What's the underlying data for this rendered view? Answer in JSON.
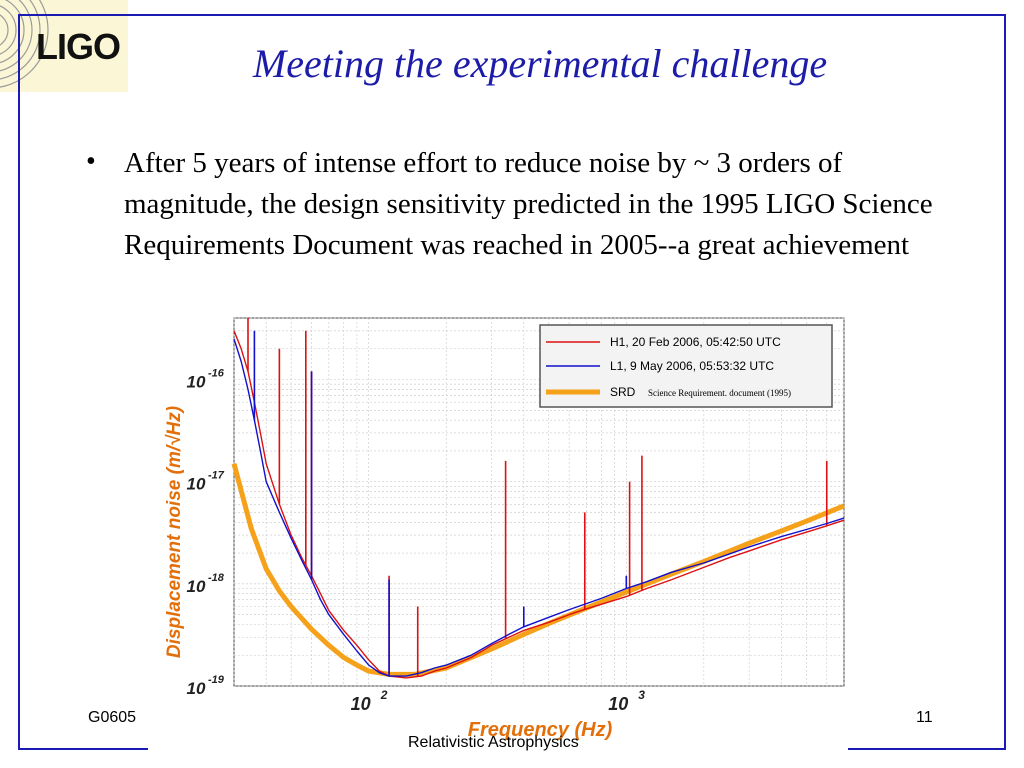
{
  "logo": {
    "text": "LIGO"
  },
  "slide": {
    "title": "Meeting the experimental challenge",
    "bullet_marker": "•",
    "bullet_text": "After 5 years of intense effort to reduce noise by ~ 3 orders of magnitude, the design sensitivity predicted in the 1995 LIGO Science Requirements Document was reached in 2005--a great achievement"
  },
  "footer": {
    "left": "G0605",
    "center": "Relativistic Astrophysics",
    "page_number": "11"
  },
  "chart_data": {
    "type": "line",
    "xscale": "log",
    "yscale": "log",
    "xlim": [
      30,
      7000
    ],
    "ylim": [
      1e-19,
      4e-16
    ],
    "grid": true,
    "legend_position": "top-right",
    "xlabel": "Frequency (Hz)",
    "ylabel": "Displacement noise (m/√Hz)",
    "x_tick_labels": [
      {
        "value": 100,
        "base": "10",
        "exp": "2"
      },
      {
        "value": 1000,
        "base": "10",
        "exp": "3"
      }
    ],
    "y_tick_labels": [
      {
        "value": 1e-16,
        "base": "10",
        "exp": "-16"
      },
      {
        "value": 1e-17,
        "base": "10",
        "exp": "-17"
      },
      {
        "value": 1e-18,
        "base": "10",
        "exp": "-18"
      },
      {
        "value": 1e-19,
        "base": "10",
        "exp": "-19"
      }
    ],
    "colors": {
      "H1": "#dd1111",
      "L1": "#1111cc",
      "SRD": "#f5a11a",
      "ylabel": "#e36f0a",
      "xlabel": "#e36f0a"
    },
    "series": [
      {
        "name": "H1, 20 Feb 2006, 05:42:50 UTC",
        "key": "H1",
        "x": [
          30,
          32,
          34,
          36,
          38,
          40,
          45,
          50,
          55,
          60,
          65,
          70,
          80,
          90,
          100,
          110,
          120,
          140,
          160,
          180,
          200,
          250,
          300,
          350,
          400,
          500,
          600,
          700,
          800,
          1000,
          1200,
          1500,
          2000,
          2500,
          3000,
          4000,
          5000,
          6000,
          7000
        ],
        "y": [
          3e-16,
          2e-16,
          1.2e-16,
          6e-17,
          3e-17,
          1.5e-17,
          6e-18,
          3e-18,
          1.8e-18,
          1.2e-18,
          8e-19,
          5.5e-19,
          3.5e-19,
          2.5e-19,
          1.8e-19,
          1.4e-19,
          1.25e-19,
          1.2e-19,
          1.25e-19,
          1.4e-19,
          1.5e-19,
          1.9e-19,
          2.5e-19,
          3e-19,
          3.5e-19,
          4.2e-19,
          5e-19,
          5.7e-19,
          6.3e-19,
          7.5e-19,
          9e-19,
          1.1e-18,
          1.45e-18,
          1.8e-18,
          2.1e-18,
          2.7e-18,
          3.2e-18,
          3.7e-18,
          4.2e-18
        ],
        "peaks": [
          [
            34,
            4e-16
          ],
          [
            45,
            2e-16
          ],
          [
            57,
            3e-16
          ],
          [
            60,
            1.2e-16
          ],
          [
            120,
            1.2e-18
          ],
          [
            155,
            6e-19
          ],
          [
            340,
            1.6e-17
          ],
          [
            690,
            5e-18
          ],
          [
            1030,
            1e-17
          ],
          [
            1150,
            1.8e-17
          ],
          [
            6000,
            1.6e-17
          ]
        ]
      },
      {
        "name": "L1, 9 May 2006, 05:53:32 UTC",
        "key": "L1",
        "x": [
          30,
          32,
          34,
          36,
          38,
          40,
          45,
          50,
          55,
          60,
          65,
          70,
          80,
          90,
          100,
          110,
          120,
          140,
          160,
          180,
          200,
          250,
          300,
          350,
          400,
          500,
          600,
          700,
          800,
          1000,
          1200,
          1500,
          2000,
          2500,
          3000,
          4000,
          5000,
          6000,
          7000
        ],
        "y": [
          2.5e-16,
          1.5e-16,
          8e-17,
          4e-17,
          2e-17,
          1e-17,
          5e-18,
          2.8e-18,
          1.7e-18,
          1.1e-18,
          7e-19,
          5e-19,
          3.2e-19,
          2.2e-19,
          1.6e-19,
          1.35e-19,
          1.25e-19,
          1.25e-19,
          1.35e-19,
          1.5e-19,
          1.6e-19,
          2e-19,
          2.6e-19,
          3.2e-19,
          3.8e-19,
          4.7e-19,
          5.6e-19,
          6.4e-19,
          7.2e-19,
          9e-19,
          1.05e-18,
          1.3e-18,
          1.6e-18,
          1.95e-18,
          2.3e-18,
          2.9e-18,
          3.4e-18,
          3.9e-18,
          4.4e-18
        ],
        "peaks": [
          [
            36,
            3e-16
          ],
          [
            60,
            1.2e-16
          ],
          [
            120,
            1.1e-18
          ],
          [
            400,
            6e-19
          ],
          [
            1000,
            1.2e-18
          ]
        ]
      },
      {
        "name": "SRD",
        "legend_note": "Science Requirement. document (1995)",
        "key": "SRD",
        "x": [
          30,
          35,
          40,
          45,
          50,
          60,
          70,
          80,
          90,
          100,
          120,
          150,
          200,
          300,
          400,
          500,
          700,
          1000,
          1500,
          2000,
          3000,
          4000,
          5000,
          7000
        ],
        "y": [
          1.5e-17,
          3.5e-18,
          1.4e-18,
          8.5e-19,
          6e-19,
          3.6e-19,
          2.5e-19,
          1.9e-19,
          1.6e-19,
          1.4e-19,
          1.3e-19,
          1.3e-19,
          1.5e-19,
          2.3e-19,
          3.2e-19,
          4.1e-19,
          5.8e-19,
          8.3e-19,
          1.25e-18,
          1.65e-18,
          2.5e-18,
          3.3e-18,
          4.1e-18,
          5.8e-18
        ]
      }
    ]
  }
}
